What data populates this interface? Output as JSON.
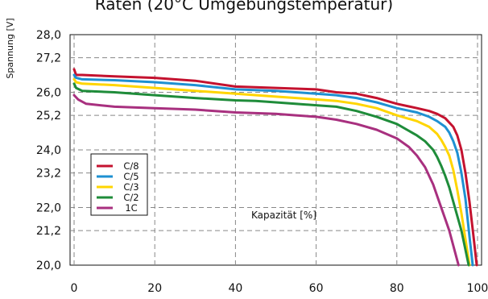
{
  "chart_data": {
    "type": "line",
    "title": "Raten (20°C Umgebungstemperatur)",
    "ylabel": "Spannung [V]",
    "annotation": "Kapazität [%]",
    "xlim": [
      -1,
      101
    ],
    "ylim": [
      20.0,
      28.0
    ],
    "xticks": [
      "0",
      "20",
      "40",
      "60",
      "80",
      "100"
    ],
    "yticks": [
      "20,0",
      "21,2",
      "22,0",
      "23,2",
      "24,0",
      "25,2",
      "26,0",
      "27,2",
      "28,0"
    ],
    "grid": true,
    "legend_position": "left",
    "series": [
      {
        "name": "C/8",
        "color": "#c4122f",
        "x": [
          0,
          0.5,
          2,
          10,
          20,
          30,
          40,
          50,
          60,
          65,
          70,
          75,
          80,
          85,
          88,
          90,
          92,
          94,
          95,
          96,
          97,
          98,
          99,
          99.8
        ],
        "y": [
          26.8,
          26.6,
          26.6,
          26.55,
          26.5,
          26.4,
          26.2,
          26.15,
          26.1,
          26.0,
          25.95,
          25.8,
          25.6,
          25.45,
          25.35,
          25.25,
          25.1,
          24.8,
          24.5,
          24.0,
          23.2,
          22.2,
          21.0,
          20.0
        ]
      },
      {
        "name": "C/5",
        "color": "#1e90d2",
        "x": [
          0,
          0.5,
          2,
          10,
          20,
          30,
          40,
          50,
          60,
          65,
          70,
          75,
          80,
          85,
          88,
          90,
          92,
          93,
          94,
          95,
          96,
          97,
          98,
          98.8
        ],
        "y": [
          26.6,
          26.5,
          26.45,
          26.42,
          26.35,
          26.25,
          26.1,
          26.05,
          25.95,
          25.9,
          25.8,
          25.65,
          25.45,
          25.3,
          25.15,
          25.0,
          24.8,
          24.6,
          24.3,
          23.9,
          23.2,
          22.3,
          21.0,
          20.0
        ]
      },
      {
        "name": "C/3",
        "color": "#ffd500",
        "x": [
          0,
          0.5,
          2,
          10,
          20,
          30,
          40,
          50,
          60,
          65,
          70,
          75,
          80,
          85,
          88,
          90,
          91,
          92,
          93,
          94,
          95,
          96,
          97,
          98
        ],
        "y": [
          26.45,
          26.35,
          26.3,
          26.25,
          26.15,
          26.05,
          25.95,
          25.85,
          25.75,
          25.7,
          25.6,
          25.45,
          25.2,
          25.0,
          24.8,
          24.55,
          24.35,
          24.1,
          23.8,
          23.3,
          22.6,
          21.8,
          20.9,
          20.0
        ]
      },
      {
        "name": "C/2",
        "color": "#1f8c3a",
        "x": [
          0,
          0.5,
          2,
          10,
          20,
          30,
          40,
          45,
          50,
          60,
          65,
          70,
          75,
          80,
          85,
          87,
          89,
          90,
          91,
          92,
          93,
          94,
          96,
          97.8
        ],
        "y": [
          26.3,
          26.15,
          26.05,
          26.0,
          25.9,
          25.8,
          25.72,
          25.7,
          25.65,
          25.55,
          25.5,
          25.35,
          25.15,
          24.9,
          24.5,
          24.3,
          24.0,
          23.75,
          23.45,
          23.1,
          22.7,
          22.2,
          21.2,
          20.0
        ]
      },
      {
        "name": "1C",
        "color": "#a8307f",
        "x": [
          0,
          1,
          3,
          10,
          20,
          30,
          40,
          50,
          55,
          60,
          65,
          70,
          75,
          80,
          83,
          85,
          87,
          88,
          89,
          90,
          91,
          92,
          93,
          95.3
        ],
        "y": [
          25.9,
          25.75,
          25.6,
          25.5,
          25.45,
          25.4,
          25.3,
          25.25,
          25.2,
          25.15,
          25.05,
          24.9,
          24.7,
          24.4,
          24.1,
          23.8,
          23.4,
          23.1,
          22.8,
          22.4,
          22.0,
          21.6,
          21.2,
          20.0
        ]
      }
    ]
  }
}
